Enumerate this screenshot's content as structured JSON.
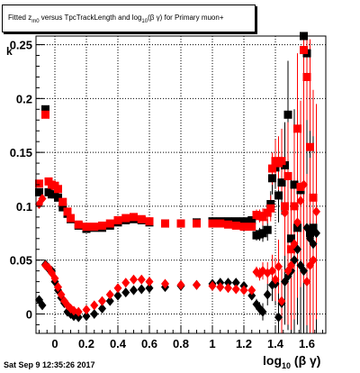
{
  "title": {
    "main": "Fitted  z",
    "sub": "m0",
    "rest": " versus TpcTrackLength and log",
    "sub2": "10",
    "rest2": "(β γ) for Primary muon+"
  },
  "datestamp": "Sat Sep  9 12:35:26 2017",
  "xlabel": {
    "main": "log",
    "sub": "10",
    "rest": " (β γ)"
  },
  "ylabel": "k",
  "chart_data": {
    "type": "scatter",
    "xlim": [
      -0.12,
      1.72
    ],
    "ylim": [
      -0.018,
      0.258
    ],
    "grid": true,
    "xticks": [
      0,
      0.2,
      0.4,
      0.6,
      0.8,
      1,
      1.2,
      1.4,
      1.6
    ],
    "xtick_labels": [
      "0",
      "0.2",
      "0.4",
      "0.6",
      "0.8",
      "1",
      "1.2",
      "1.4",
      "1.6"
    ],
    "yticks": [
      0,
      0.05,
      0.1,
      0.15,
      0.2,
      0.25
    ],
    "ytick_labels": [
      "0",
      "0.05",
      "0.1",
      "0.15",
      "0.2",
      "0.25"
    ],
    "series": [
      {
        "marker": "square",
        "color": "#000000",
        "x": [
          -0.1,
          -0.06,
          -0.04,
          -0.02,
          0.0,
          0.02,
          0.05,
          0.08,
          0.1,
          0.15,
          0.2,
          0.25,
          0.3,
          0.35,
          0.4,
          0.45,
          0.5,
          0.55,
          0.6,
          0.7,
          0.8,
          0.9,
          1.0,
          1.05,
          1.1,
          1.15,
          1.2,
          1.25,
          1.28,
          1.3,
          1.32,
          1.35,
          1.37,
          1.38,
          1.4,
          1.42,
          1.44,
          1.46,
          1.48,
          1.5,
          1.52,
          1.54,
          1.56,
          1.58,
          1.6,
          1.62,
          1.64
        ],
        "y": [
          0.113,
          0.19,
          0.113,
          0.111,
          0.111,
          0.108,
          0.099,
          0.093,
          0.088,
          0.082,
          0.079,
          0.08,
          0.08,
          0.082,
          0.085,
          0.087,
          0.088,
          0.087,
          0.085,
          0.084,
          0.084,
          0.085,
          0.086,
          0.086,
          0.086,
          0.086,
          0.086,
          0.087,
          0.073,
          0.074,
          0.075,
          0.078,
          0.102,
          0.126,
          0.136,
          0.11,
          0.122,
          0.138,
          0.185,
          0.07,
          0.12,
          0.08,
          0.115,
          0.258,
          0.242,
          0.075,
          0.08
        ],
        "yerr": [
          0.003,
          0.004,
          0.002,
          0.002,
          0.002,
          0.002,
          0.002,
          0.002,
          0.002,
          0.001,
          0.001,
          0.001,
          0.001,
          0.001,
          0.001,
          0.001,
          0.001,
          0.001,
          0.001,
          0.001,
          0.001,
          0.001,
          0.001,
          0.001,
          0.002,
          0.002,
          0.003,
          0.004,
          0.005,
          0.006,
          0.008,
          0.01,
          0.012,
          0.015,
          0.02,
          0.025,
          0.03,
          0.04,
          0.05,
          0.06,
          0.07,
          0.07,
          0.08,
          0.09,
          0.1,
          0.1,
          0.1
        ]
      },
      {
        "marker": "square",
        "color": "#ff0000",
        "x": [
          -0.1,
          -0.06,
          -0.04,
          -0.02,
          0.0,
          0.02,
          0.05,
          0.08,
          0.1,
          0.15,
          0.2,
          0.25,
          0.3,
          0.35,
          0.4,
          0.45,
          0.5,
          0.55,
          0.6,
          0.7,
          0.8,
          0.9,
          1.0,
          1.05,
          1.1,
          1.15,
          1.2,
          1.25,
          1.28,
          1.3,
          1.32,
          1.35,
          1.37,
          1.38,
          1.4,
          1.42,
          1.44,
          1.46,
          1.48,
          1.5,
          1.52,
          1.54,
          1.56,
          1.58,
          1.6,
          1.62,
          1.64
        ],
        "y": [
          0.121,
          0.185,
          0.123,
          0.12,
          0.119,
          0.116,
          0.104,
          0.095,
          0.089,
          0.083,
          0.081,
          0.081,
          0.082,
          0.084,
          0.087,
          0.089,
          0.09,
          0.088,
          0.086,
          0.084,
          0.084,
          0.084,
          0.084,
          0.084,
          0.083,
          0.082,
          0.081,
          0.081,
          0.092,
          0.091,
          0.09,
          0.094,
          0.098,
          0.135,
          0.142,
          0.14,
          0.142,
          0.1,
          0.128,
          0.06,
          0.1,
          0.172,
          0.118,
          0.245,
          0.22,
          0.155,
          0.108
        ],
        "yerr": [
          0.003,
          0.004,
          0.002,
          0.002,
          0.002,
          0.002,
          0.002,
          0.002,
          0.002,
          0.001,
          0.001,
          0.001,
          0.001,
          0.001,
          0.001,
          0.001,
          0.001,
          0.001,
          0.001,
          0.001,
          0.001,
          0.001,
          0.001,
          0.001,
          0.002,
          0.002,
          0.003,
          0.004,
          0.005,
          0.006,
          0.008,
          0.01,
          0.012,
          0.015,
          0.02,
          0.025,
          0.03,
          0.04,
          0.05,
          0.06,
          0.07,
          0.07,
          0.08,
          0.09,
          0.1,
          0.1,
          0.1
        ]
      },
      {
        "marker": "diamond",
        "color": "#000000",
        "x": [
          -0.1,
          -0.08,
          -0.06,
          -0.04,
          -0.02,
          0.0,
          0.02,
          0.04,
          0.06,
          0.08,
          0.1,
          0.12,
          0.15,
          0.2,
          0.25,
          0.3,
          0.35,
          0.4,
          0.45,
          0.5,
          0.55,
          0.6,
          0.7,
          0.8,
          0.9,
          1.0,
          1.05,
          1.1,
          1.15,
          1.2,
          1.25,
          1.28,
          1.3,
          1.32,
          1.35,
          1.38,
          1.4,
          1.42,
          1.44,
          1.46,
          1.48,
          1.5,
          1.52,
          1.54,
          1.56,
          1.58,
          1.6,
          1.62,
          1.64,
          1.66
        ],
        "y": [
          0.013,
          0.008,
          0.046,
          0.042,
          0.04,
          0.03,
          0.022,
          0.015,
          0.01,
          0.002,
          0.0,
          -0.002,
          -0.003,
          -0.002,
          0.0,
          0.005,
          0.012,
          0.017,
          0.02,
          0.022,
          0.023,
          0.024,
          0.025,
          0.026,
          0.027,
          0.028,
          0.029,
          0.029,
          0.029,
          0.026,
          0.017,
          0.009,
          0.005,
          0.002,
          0.018,
          0.027,
          0.028,
          -0.003,
          0.01,
          0.03,
          0.035,
          0.04,
          0.05,
          0.06,
          0.045,
          0.04,
          0.08,
          0.07,
          0.065,
          0.075
        ],
        "yerr": [
          0.003,
          0.003,
          0.003,
          0.002,
          0.002,
          0.002,
          0.002,
          0.002,
          0.001,
          0.001,
          0.001,
          0.001,
          0.001,
          0.001,
          0.001,
          0.001,
          0.001,
          0.001,
          0.001,
          0.001,
          0.001,
          0.001,
          0.001,
          0.001,
          0.001,
          0.001,
          0.001,
          0.002,
          0.002,
          0.003,
          0.004,
          0.005,
          0.006,
          0.008,
          0.01,
          0.015,
          0.02,
          0.025,
          0.03,
          0.04,
          0.05,
          0.06,
          0.07,
          0.07,
          0.08,
          0.09,
          0.1,
          0.1,
          0.1,
          0.1
        ]
      },
      {
        "marker": "diamond",
        "color": "#ff0000",
        "x": [
          -0.1,
          -0.08,
          -0.06,
          -0.04,
          -0.02,
          0.0,
          0.02,
          0.04,
          0.06,
          0.08,
          0.1,
          0.12,
          0.15,
          0.2,
          0.25,
          0.3,
          0.35,
          0.4,
          0.45,
          0.5,
          0.55,
          0.6,
          0.7,
          0.8,
          0.9,
          1.0,
          1.05,
          1.1,
          1.15,
          1.2,
          1.25,
          1.28,
          1.3,
          1.32,
          1.35,
          1.38,
          1.4,
          1.42,
          1.44,
          1.46,
          1.48,
          1.5,
          1.52,
          1.54,
          1.56,
          1.58,
          1.6,
          1.62,
          1.64,
          1.66
        ],
        "y": [
          0.102,
          0.107,
          0.045,
          0.043,
          0.038,
          0.033,
          0.025,
          0.018,
          0.012,
          0.008,
          0.005,
          0.003,
          0.002,
          0.004,
          0.008,
          0.012,
          0.018,
          0.024,
          0.029,
          0.032,
          0.032,
          0.03,
          0.028,
          0.027,
          0.027,
          0.026,
          0.025,
          0.024,
          0.023,
          0.022,
          0.022,
          0.039,
          0.037,
          0.04,
          0.038,
          0.04,
          0.032,
          0.044,
          0.012,
          0.094,
          0.04,
          0.045,
          0.065,
          0.085,
          0.105,
          0.12,
          0.03,
          0.045,
          0.05,
          0.095
        ],
        "yerr": [
          0.003,
          0.003,
          0.003,
          0.002,
          0.002,
          0.002,
          0.002,
          0.002,
          0.001,
          0.001,
          0.001,
          0.001,
          0.001,
          0.001,
          0.001,
          0.001,
          0.001,
          0.001,
          0.001,
          0.001,
          0.001,
          0.001,
          0.001,
          0.001,
          0.001,
          0.001,
          0.001,
          0.002,
          0.002,
          0.003,
          0.004,
          0.005,
          0.006,
          0.008,
          0.01,
          0.015,
          0.02,
          0.025,
          0.03,
          0.04,
          0.05,
          0.06,
          0.07,
          0.07,
          0.08,
          0.09,
          0.1,
          0.1,
          0.1,
          0.1
        ]
      }
    ]
  }
}
